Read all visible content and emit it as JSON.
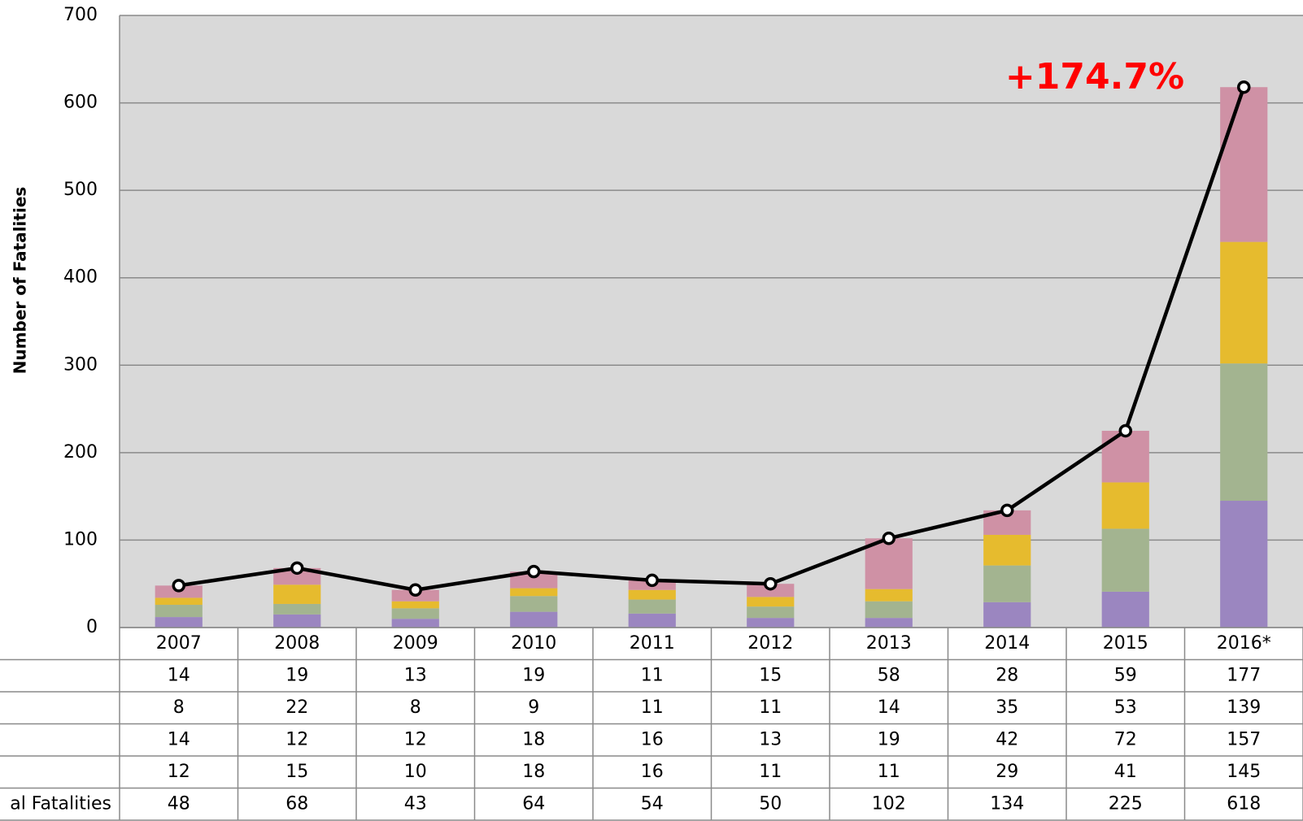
{
  "chart_data": {
    "type": "bar",
    "stacked": true,
    "ylabel": "Number of Fatalities",
    "annotation": "+174.7%",
    "categories": [
      "2007",
      "2008",
      "2009",
      "2010",
      "2011",
      "2012",
      "2013",
      "2014",
      "2015",
      "2016*"
    ],
    "series": [
      {
        "color": "#cf91a5",
        "values": [
          14,
          19,
          13,
          19,
          11,
          15,
          58,
          28,
          59,
          177
        ]
      },
      {
        "color": "#e6bb2e",
        "values": [
          8,
          22,
          8,
          9,
          11,
          11,
          14,
          35,
          53,
          139
        ]
      },
      {
        "color": "#a3b490",
        "values": [
          14,
          12,
          12,
          18,
          16,
          13,
          19,
          42,
          72,
          157
        ]
      },
      {
        "color": "#9b86c0",
        "values": [
          12,
          15,
          10,
          18,
          16,
          11,
          11,
          29,
          41,
          145
        ]
      },
      {
        "name": "al Fatalities",
        "type": "line",
        "color": "#000000",
        "values": [
          48,
          68,
          43,
          64,
          54,
          50,
          102,
          134,
          225,
          618
        ]
      }
    ],
    "ylim": [
      0,
      700
    ],
    "yticks": [
      0,
      100,
      200,
      300,
      400,
      500,
      600,
      700
    ],
    "grid": true
  }
}
